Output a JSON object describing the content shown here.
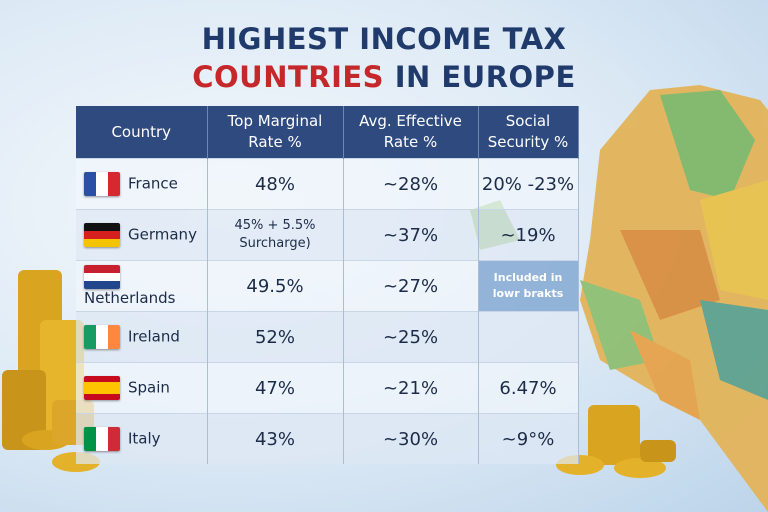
{
  "header": {
    "title_line1": "HIGHEST INCOME TAX",
    "title_line2_highlight": "COUNTRIES",
    "title_line2_rest": "IN EUROPE"
  },
  "table": {
    "columns": [
      "Country",
      "Top Marginal\nRate %",
      "Avg. Effective\nRate %",
      "Social\nSecurity %"
    ],
    "rows": [
      [
        "France",
        "48%",
        "~28%",
        "20% -23%"
      ],
      [
        "Germany",
        "45% + 5.5%\nSurcharge)",
        "~37%",
        "~19%"
      ],
      [
        "Netherlands",
        "49.5%",
        "~27%",
        "Included in\nlowr brakts"
      ],
      [
        "Ireland",
        "52%",
        "~25%",
        ""
      ],
      [
        "Spain",
        "47%",
        "~21%",
        "6.47%"
      ],
      [
        "Italy",
        "43%",
        "~30%",
        "~9°%"
      ]
    ]
  }
}
